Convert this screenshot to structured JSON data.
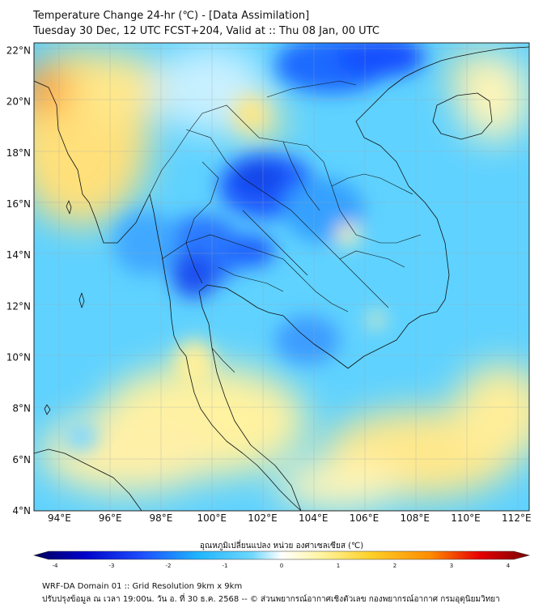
{
  "header": {
    "title": "Temperature Change 24-hr (℃) - [Data Assimilation]",
    "subtitle": "Tuesday 30 Dec, 12 UTC FCST+204, Valid at :: Thu 08 Jan, 00 UTC"
  },
  "map": {
    "lon_range": [
      93,
      112.5
    ],
    "lat_range": [
      4,
      22.3
    ],
    "lat_labels": [
      "22°N",
      "20°N",
      "18°N",
      "16°N",
      "14°N",
      "12°N",
      "10°N",
      "8°N",
      "6°N",
      "4°N"
    ],
    "lat_values": [
      22,
      20,
      18,
      16,
      14,
      12,
      10,
      8,
      6,
      4
    ],
    "lon_labels": [
      "94°E",
      "96°E",
      "98°E",
      "100°E",
      "102°E",
      "104°E",
      "106°E",
      "108°E",
      "110°E",
      "112°E"
    ],
    "lon_values": [
      94,
      96,
      98,
      100,
      102,
      104,
      106,
      108,
      110,
      112
    ]
  },
  "colorbar": {
    "label": "อุณหภูมิเปลี่ยนแปลง หน่วย องศาเซลเซียส (℃)",
    "ticks": [
      "-4",
      "-3",
      "-2",
      "-1",
      "0",
      "1",
      "2",
      "3",
      "4"
    ],
    "tick_values": [
      -4,
      -3,
      -2,
      -1,
      0,
      1,
      2,
      3,
      4
    ],
    "colors": [
      "#00005a",
      "#0000c8",
      "#1e50ff",
      "#1eb4ff",
      "#6ed8ff",
      "#ffffff",
      "#fff5a0",
      "#ffd028",
      "#ff8c00",
      "#e60000",
      "#7a0000"
    ]
  },
  "footer": {
    "line1": "WRF-DA Domain 01 :: Grid Resolution 9km x 9km",
    "line2": "ปรับปรุงข้อมูล ณ เวลา 19:00น. วัน อ. ที่ 30 ธ.ค. 2568 -- © ส่วนพยากรณ์อากาศเชิงตัวเลข กองพยากรณ์อากาศ กรมอุตุนิยมวิทยา"
  }
}
